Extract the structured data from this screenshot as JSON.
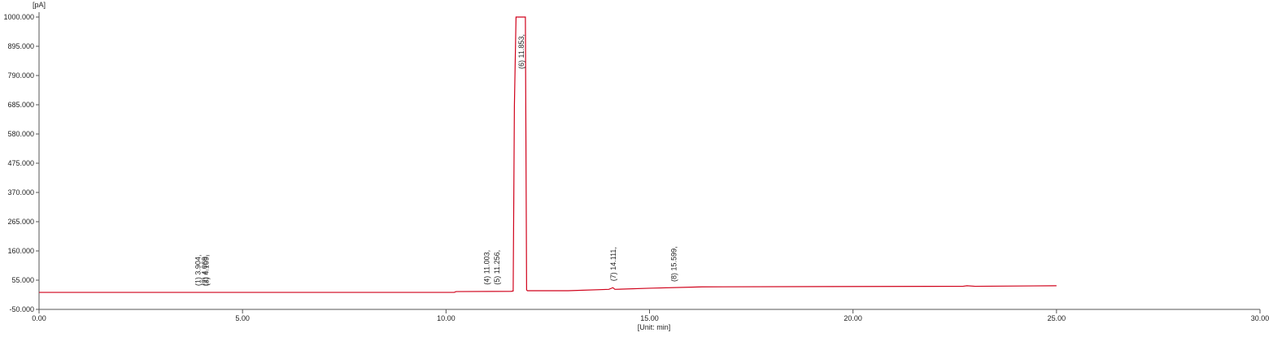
{
  "chart_data": {
    "type": "line",
    "y_unit": "[pA]",
    "x_label": "[Unit: min]",
    "xlim": [
      0,
      30
    ],
    "ylim": [
      -50,
      1000
    ],
    "xticks": [
      {
        "value": 0,
        "label": "0.00"
      },
      {
        "value": 5,
        "label": "5.00"
      },
      {
        "value": 10,
        "label": "10.00"
      },
      {
        "value": 15,
        "label": "15.00"
      },
      {
        "value": 20,
        "label": "20.00"
      },
      {
        "value": 25,
        "label": "25.00"
      },
      {
        "value": 30,
        "label": "30.00"
      }
    ],
    "yticks": [
      {
        "value": -50,
        "label": "-50.000"
      },
      {
        "value": 55,
        "label": "55.000"
      },
      {
        "value": 160,
        "label": "160.000"
      },
      {
        "value": 265,
        "label": "265.000"
      },
      {
        "value": 370,
        "label": "370.000"
      },
      {
        "value": 475,
        "label": "475.000"
      },
      {
        "value": 580,
        "label": "580.000"
      },
      {
        "value": 685,
        "label": "685.000"
      },
      {
        "value": 790,
        "label": "790.000"
      },
      {
        "value": 895,
        "label": "895.000"
      },
      {
        "value": 1000,
        "label": "1000.000"
      }
    ],
    "series": [
      {
        "color": "#d0021b",
        "x": [
          0,
          10.2,
          10.25,
          11.6,
          11.65,
          11.68,
          11.72,
          11.95,
          11.98,
          12.0,
          13.0,
          14.0,
          14.1,
          14.15,
          15.0,
          16.3,
          22.7,
          22.8,
          23.0,
          25.0
        ],
        "values": [
          11,
          11,
          14,
          15,
          16,
          680,
          1000,
          1000,
          20,
          17,
          17,
          22,
          28,
          22,
          26,
          31,
          33,
          35,
          33,
          35
        ]
      }
    ],
    "peaks": [
      {
        "x": 3.904,
        "label": "(1) 3.904,"
      },
      {
        "x": 4.069,
        "label": "(2) 4.069,"
      },
      {
        "x": 4.109,
        "label": "(3) 4.109,"
      },
      {
        "x": 11.003,
        "label": "(4) 11.003,"
      },
      {
        "x": 11.256,
        "label": "(5) 11.256,"
      },
      {
        "x": 11.853,
        "label": "(6) 11.853,"
      },
      {
        "x": 14.111,
        "label": "(7) 14.111,"
      },
      {
        "x": 15.599,
        "label": "(8) 15.599,"
      }
    ]
  }
}
